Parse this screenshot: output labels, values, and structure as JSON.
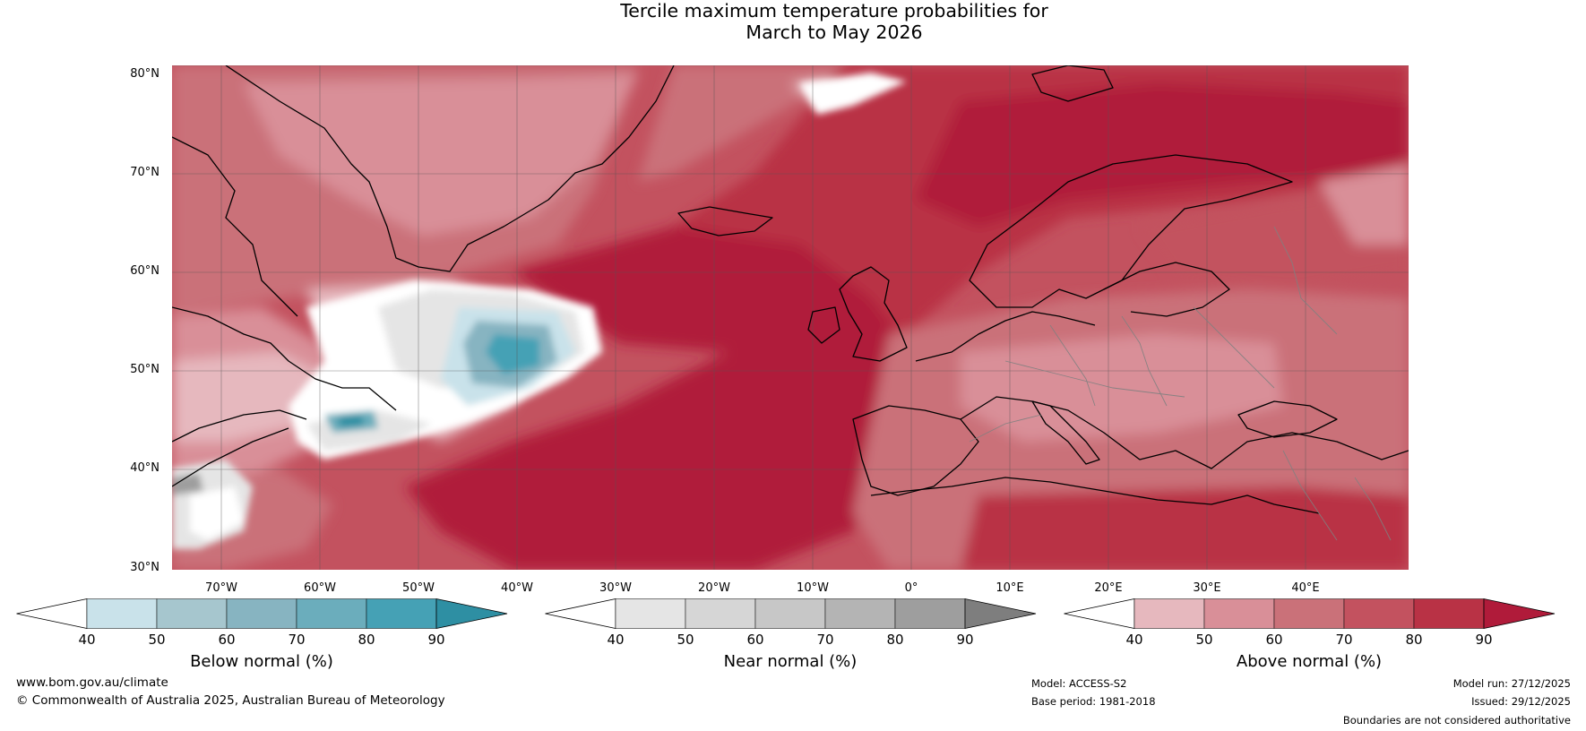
{
  "title": {
    "line1": "Tercile maximum temperature probabilities for",
    "line2": "March to May 2026"
  },
  "axes": {
    "lat_labels": [
      "80°N",
      "70°N",
      "60°N",
      "50°N",
      "40°N",
      "30°N"
    ],
    "lon_labels": [
      "70°W",
      "60°W",
      "50°W",
      "40°W",
      "30°W",
      "20°W",
      "10°W",
      "0°",
      "10°E",
      "20°E",
      "30°E",
      "40°E"
    ]
  },
  "colorbars": [
    {
      "label": "Below normal (%)",
      "ticks": [
        "40",
        "50",
        "60",
        "70",
        "80",
        "90"
      ],
      "colors": [
        "#ffffff",
        "#c9e2ea",
        "#a6c6ce",
        "#87b4c1",
        "#6badbc",
        "#45a1b5",
        "#2e8fa3"
      ]
    },
    {
      "label": "Near normal (%)",
      "ticks": [
        "40",
        "50",
        "60",
        "70",
        "80",
        "90"
      ],
      "colors": [
        "#ffffff",
        "#e5e5e5",
        "#d6d6d6",
        "#c7c7c7",
        "#b4b4b4",
        "#9e9e9e",
        "#7e7e7e"
      ]
    },
    {
      "label": "Above normal (%)",
      "ticks": [
        "40",
        "50",
        "60",
        "70",
        "80",
        "90"
      ],
      "colors": [
        "#ffffff",
        "#e6b8be",
        "#d98f98",
        "#ca7179",
        "#c3525f",
        "#b93245",
        "#b01b3a"
      ]
    }
  ],
  "footer": {
    "website": "www.bom.gov.au/climate",
    "copyright": "© Commonwealth of Australia 2025, Australian Bureau of Meteorology",
    "model": "Model: ACCESS-S2",
    "base_period": "Base period: 1981-2018",
    "model_run": "Model run: 27/12/2025",
    "issued": "Issued: 29/12/2025",
    "disclaimer": "Boundaries are not considered authoritative"
  }
}
